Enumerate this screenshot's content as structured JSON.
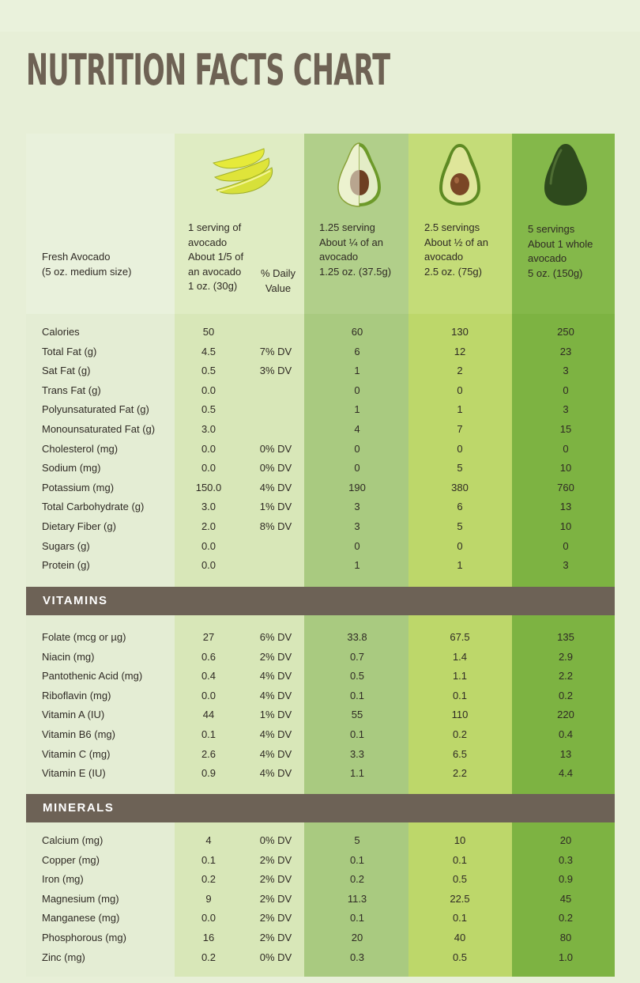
{
  "title": "NUTRITION FACTS CHART",
  "colors": {
    "band": "#6d6256",
    "col1": "#d8e7b8",
    "col2": "#a9ca80",
    "col3": "#bdd76a",
    "col4": "#7db342"
  },
  "header": {
    "c0": [
      "Fresh Avocado",
      "(5 oz. medium size)"
    ],
    "c1": [
      "1 serving of",
      "avocado",
      "About 1/5 of",
      "an avocado",
      "1 oz. (30g)"
    ],
    "dv": [
      "% Daily",
      "Value"
    ],
    "c2": [
      "1.25 serving",
      "About ¼ of an",
      "avocado",
      "1.25 oz. (37.5g)"
    ],
    "c3": [
      "2.5 servings",
      "About ½ of an",
      "avocado",
      "2.5 oz. (75g)"
    ],
    "c4": [
      "5 servings",
      "About 1 whole",
      "avocado",
      "5 oz. (150g)"
    ]
  },
  "icons": [
    "avocado-slices-icon",
    "avocado-quarter-icon",
    "avocado-half-icon",
    "whole-avocado-icon"
  ],
  "sections": [
    {
      "name": "",
      "rows": [
        [
          "Calories",
          "50",
          "",
          "60",
          "130",
          "250"
        ],
        [
          "Total Fat (g)",
          "4.5",
          "7% DV",
          "6",
          "12",
          "23"
        ],
        [
          "Sat Fat (g)",
          "0.5",
          "3% DV",
          "1",
          "2",
          "3"
        ],
        [
          "Trans Fat (g)",
          "0.0",
          "",
          "0",
          "0",
          "0"
        ],
        [
          "Polyunsaturated Fat (g)",
          "0.5",
          "",
          "1",
          "1",
          "3"
        ],
        [
          "Monounsaturated Fat (g)",
          "3.0",
          "",
          "4",
          "7",
          "15"
        ],
        [
          "Cholesterol (mg)",
          "0.0",
          "0% DV",
          "0",
          "0",
          "0"
        ],
        [
          "Sodium (mg)",
          "0.0",
          "0% DV",
          "0",
          "5",
          "10"
        ],
        [
          "Potassium (mg)",
          "150.0",
          "4% DV",
          "190",
          "380",
          "760"
        ],
        [
          "Total Carbohydrate (g)",
          "3.0",
          "1% DV",
          "3",
          "6",
          "13"
        ],
        [
          "Dietary Fiber (g)",
          "2.0",
          "8% DV",
          "3",
          "5",
          "10"
        ],
        [
          "Sugars (g)",
          "0.0",
          "",
          "0",
          "0",
          "0"
        ],
        [
          "Protein (g)",
          "0.0",
          "",
          "1",
          "1",
          "3"
        ]
      ]
    },
    {
      "name": "VITAMINS",
      "rows": [
        [
          "Folate (mcg or µg)",
          "27",
          "6% DV",
          "33.8",
          "67.5",
          "135"
        ],
        [
          "Niacin (mg)",
          "0.6",
          "2% DV",
          "0.7",
          "1.4",
          "2.9"
        ],
        [
          "Pantothenic Acid (mg)",
          "0.4",
          "4% DV",
          "0.5",
          "1.1",
          "2.2"
        ],
        [
          "Riboflavin (mg)",
          "0.0",
          "4% DV",
          "0.1",
          "0.1",
          "0.2"
        ],
        [
          "Vitamin A (IU)",
          "44",
          "1% DV",
          "55",
          "110",
          "220"
        ],
        [
          "Vitamin B6 (mg)",
          "0.1",
          "4% DV",
          "0.1",
          "0.2",
          "0.4"
        ],
        [
          "Vitamin C (mg)",
          "2.6",
          "4% DV",
          "3.3",
          "6.5",
          "13"
        ],
        [
          "Vitamin E (IU)",
          "0.9",
          "4% DV",
          "1.1",
          "2.2",
          "4.4"
        ]
      ]
    },
    {
      "name": "MINERALS",
      "rows": [
        [
          "Calcium (mg)",
          "4",
          "0% DV",
          "5",
          "10",
          "20"
        ],
        [
          "Copper (mg)",
          "0.1",
          "2% DV",
          "0.1",
          "0.1",
          "0.3"
        ],
        [
          "Iron (mg)",
          "0.2",
          "2% DV",
          "0.2",
          "0.5",
          "0.9"
        ],
        [
          "Magnesium (mg)",
          "9",
          "2% DV",
          "11.3",
          "22.5",
          "45"
        ],
        [
          "Manganese (mg)",
          "0.0",
          "2% DV",
          "0.1",
          "0.1",
          "0.2"
        ],
        [
          "Phosphorous (mg)",
          "16",
          "2% DV",
          "20",
          "40",
          "80"
        ],
        [
          "Zinc (mg)",
          "0.2",
          "0% DV",
          "0.3",
          "0.5",
          "1.0"
        ]
      ]
    }
  ]
}
